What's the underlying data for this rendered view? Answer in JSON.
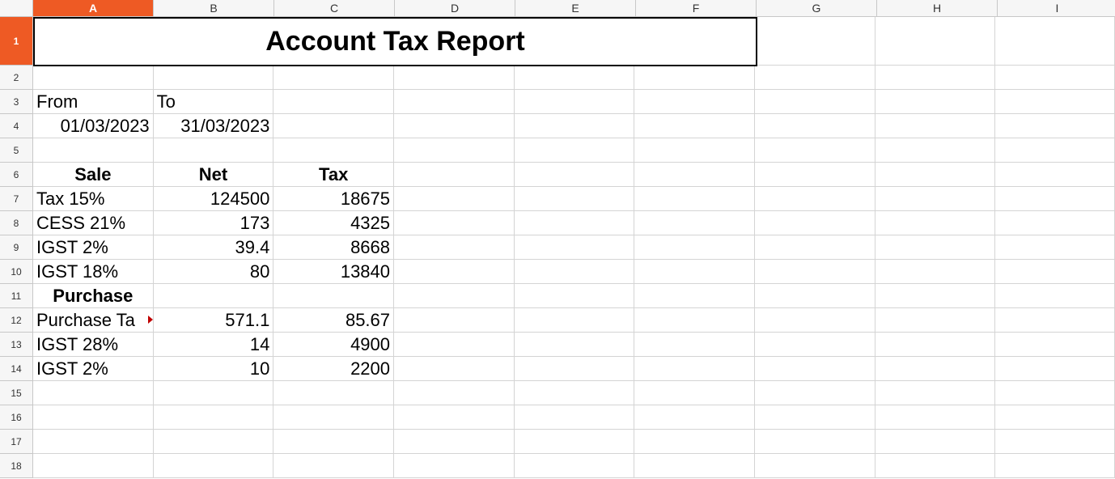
{
  "columns": [
    "A",
    "B",
    "C",
    "D",
    "E",
    "F",
    "G",
    "H",
    "I"
  ],
  "rows": [
    "1",
    "2",
    "3",
    "4",
    "5",
    "6",
    "7",
    "8",
    "9",
    "10",
    "11",
    "12",
    "13",
    "14",
    "15",
    "16",
    "17",
    "18"
  ],
  "title": "Account Tax Report",
  "cells": {
    "A3": "From",
    "B3": "To",
    "A4": "01/03/2023",
    "B4": "31/03/2023",
    "A6": "Sale",
    "B6": "Net",
    "C6": "Tax",
    "A7": "Tax 15%",
    "B7": "124500",
    "C7": "18675",
    "A8": "CESS 21%",
    "B8": "173",
    "C8": "4325",
    "A9": "IGST 2%",
    "B9": "39.4",
    "C9": "8668",
    "A10": "IGST 18%",
    "B10": "80",
    "C10": "13840",
    "A11": "Purchase",
    "A12": "Purchase Ta",
    "B12": "571.1",
    "C12": "85.67",
    "A13": "IGST 28%",
    "B13": "14",
    "C13": "4900",
    "A14": "IGST 2%",
    "B14": "10",
    "C14": "2200"
  },
  "active_cell": "A1",
  "colors": {
    "header_active": "#ee5a24",
    "gridline": "#d4d4d4"
  }
}
